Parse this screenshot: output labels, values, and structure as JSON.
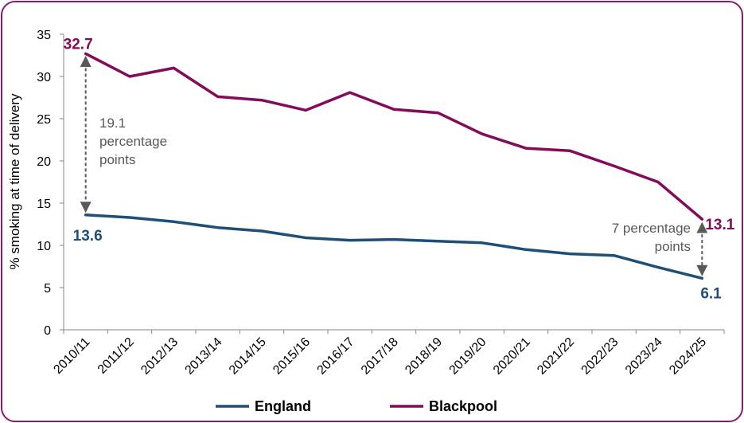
{
  "chart_data": {
    "type": "line",
    "categories": [
      "2010/11",
      "2011/12",
      "2012/13",
      "2013/14",
      "2014/15",
      "2015/16",
      "2016/17",
      "2017/18",
      "2018/19",
      "2019/20",
      "2020/21",
      "2021/22",
      "2022/23",
      "2023/24",
      "2024/25"
    ],
    "series": [
      {
        "name": "England",
        "color": "#1f4e79",
        "values": [
          13.6,
          13.3,
          12.8,
          12.1,
          11.7,
          10.9,
          10.6,
          10.7,
          10.5,
          10.3,
          9.5,
          9.0,
          8.8,
          7.4,
          6.1
        ]
      },
      {
        "name": "Blackpool",
        "color": "#820b5a",
        "values": [
          32.7,
          30.0,
          31.0,
          27.6,
          27.2,
          26.0,
          28.1,
          26.1,
          25.7,
          23.2,
          21.5,
          21.2,
          19.4,
          17.5,
          13.1
        ]
      }
    ],
    "ylabel": "% smoking at time of delivery",
    "ylim": [
      0,
      35
    ],
    "yticks": [
      0,
      5,
      10,
      15,
      20,
      25,
      30,
      35
    ],
    "labels": {
      "england_start": "13.6",
      "england_end": "6.1",
      "blackpool_start": "32.7",
      "blackpool_end": "13.1"
    },
    "annotations": {
      "gap_start": [
        "19.1",
        "percentage",
        "points"
      ],
      "gap_end": [
        "7 percentage",
        "points"
      ]
    },
    "legend": {
      "position": "bottom",
      "items": [
        "England",
        "Blackpool"
      ]
    }
  }
}
